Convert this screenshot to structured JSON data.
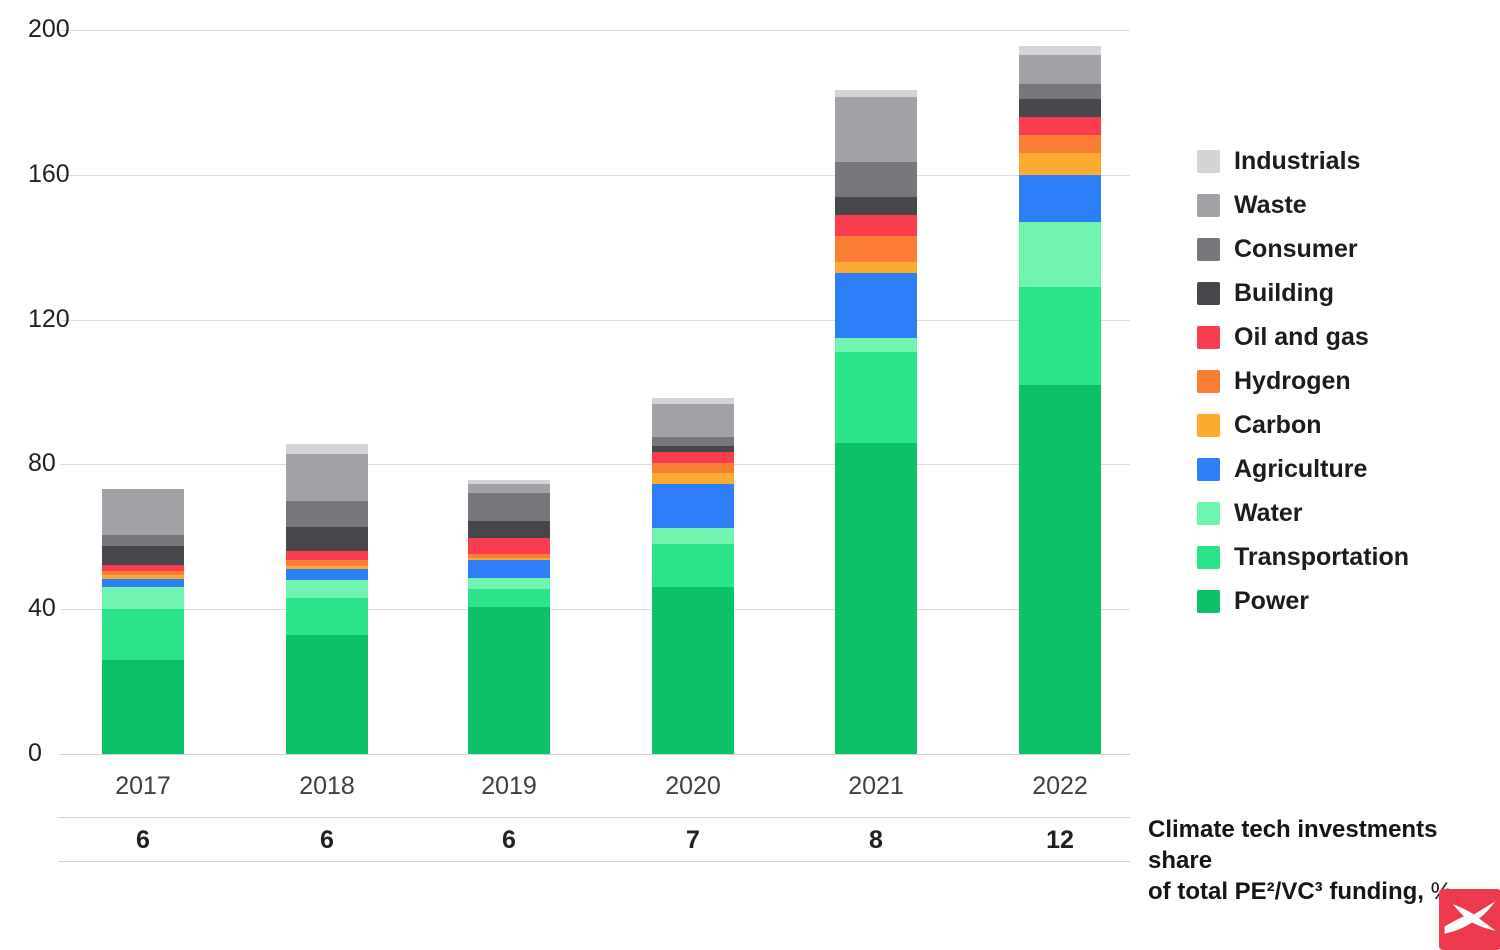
{
  "chart_data": {
    "type": "bar",
    "stacked": true,
    "title": "",
    "xlabel": "",
    "ylabel": "",
    "ylim": [
      0,
      200
    ],
    "yticks": [
      0,
      40,
      80,
      120,
      160,
      200
    ],
    "grid": "horizontal",
    "legend_position": "right",
    "categories": [
      "2017",
      "2018",
      "2019",
      "2020",
      "2021",
      "2022"
    ],
    "series": [
      {
        "name": "Industrials",
        "color": "#d4d4d6",
        "values": [
          0,
          2.5,
          1.2,
          1.7,
          2,
          2.5
        ]
      },
      {
        "name": "Waste",
        "color": "#a2a2a6",
        "values": [
          12.7,
          13,
          2.4,
          9,
          18,
          8
        ]
      },
      {
        "name": "Consumer",
        "color": "#77777b",
        "values": [
          3.1,
          7.2,
          7.8,
          2.5,
          9.5,
          4
        ]
      },
      {
        "name": "Building",
        "color": "#47474b",
        "values": [
          5.3,
          6.7,
          4.6,
          1.6,
          5,
          5
        ]
      },
      {
        "name": "Oil and gas",
        "color": "#f93c4e",
        "values": [
          1.6,
          2.5,
          4.5,
          3,
          6,
          5
        ]
      },
      {
        "name": "Hydrogen",
        "color": "#fb7d33",
        "values": [
          1.2,
          1.6,
          1,
          3,
          7,
          5
        ]
      },
      {
        "name": "Carbon",
        "color": "#fcaa2f",
        "values": [
          1,
          1,
          0.7,
          3,
          3,
          6
        ]
      },
      {
        "name": "Agriculture",
        "color": "#2d7ff7",
        "values": [
          2.2,
          3,
          5,
          12,
          18,
          13
        ]
      },
      {
        "name": "Water",
        "color": "#6ff5b0",
        "values": [
          6.2,
          5,
          3,
          4.5,
          4,
          18
        ]
      },
      {
        "name": "Transportation",
        "color": "#2be389",
        "values": [
          14,
          10,
          5,
          12,
          25,
          27
        ]
      },
      {
        "name": "Power",
        "color": "#0cc167",
        "values": [
          26,
          33,
          40.5,
          46,
          86,
          102
        ]
      }
    ],
    "share_row": {
      "values": [
        "6",
        "6",
        "6",
        "7",
        "8",
        "12"
      ],
      "label_line1": "Climate tech investments share",
      "label_line2_bold": "of total PE²/VC³ funding,",
      "label_line2_normal": " %"
    }
  },
  "logo": {
    "background": "#ee3a4d"
  }
}
